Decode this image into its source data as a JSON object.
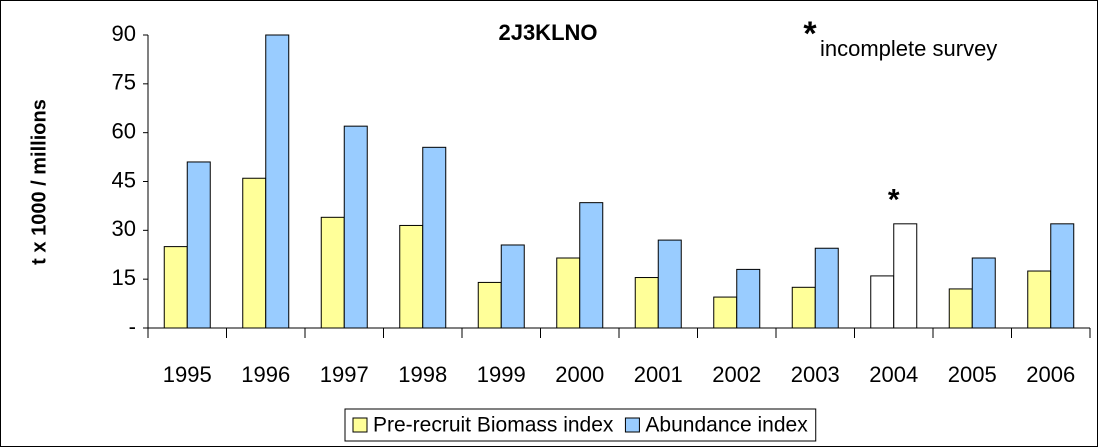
{
  "chart_data": {
    "type": "bar",
    "title": "2J3KLNO",
    "note": {
      "mark": "*",
      "text": "incomplete survey"
    },
    "y_label": "t x 1000 / millions",
    "categories": [
      "1995",
      "1996",
      "1997",
      "1998",
      "1999",
      "2000",
      "2001",
      "2002",
      "2003",
      "2004",
      "2005",
      "2006"
    ],
    "series": [
      {
        "name": "Pre-recruit Biomass index",
        "color": "#ffff99",
        "colors": [
          "#ffff99",
          "#ffff99",
          "#ffff99",
          "#ffff99",
          "#ffff99",
          "#ffff99",
          "#ffff99",
          "#ffff99",
          "#ffff99",
          "#ffffff",
          "#ffff99",
          "#ffff99"
        ],
        "values": [
          25,
          46,
          34,
          31.5,
          14,
          21.5,
          15.5,
          9.5,
          12.5,
          16,
          12,
          17.5
        ]
      },
      {
        "name": "Abundance index",
        "color": "#99ccff",
        "colors": [
          "#99ccff",
          "#99ccff",
          "#99ccff",
          "#99ccff",
          "#99ccff",
          "#99ccff",
          "#99ccff",
          "#99ccff",
          "#99ccff",
          "#ffffff",
          "#99ccff",
          "#99ccff"
        ],
        "values": [
          51,
          90,
          62,
          55.5,
          25.5,
          38.5,
          27,
          18,
          24.5,
          32,
          21.5,
          32
        ]
      }
    ],
    "annotations": [
      {
        "text": "*",
        "category": "2004"
      }
    ],
    "ylim": [
      0,
      90
    ],
    "yticks": [
      {
        "value": 0,
        "label": "-"
      },
      15,
      30,
      45,
      60,
      75,
      90
    ],
    "grid": false,
    "legend": "bottom"
  }
}
